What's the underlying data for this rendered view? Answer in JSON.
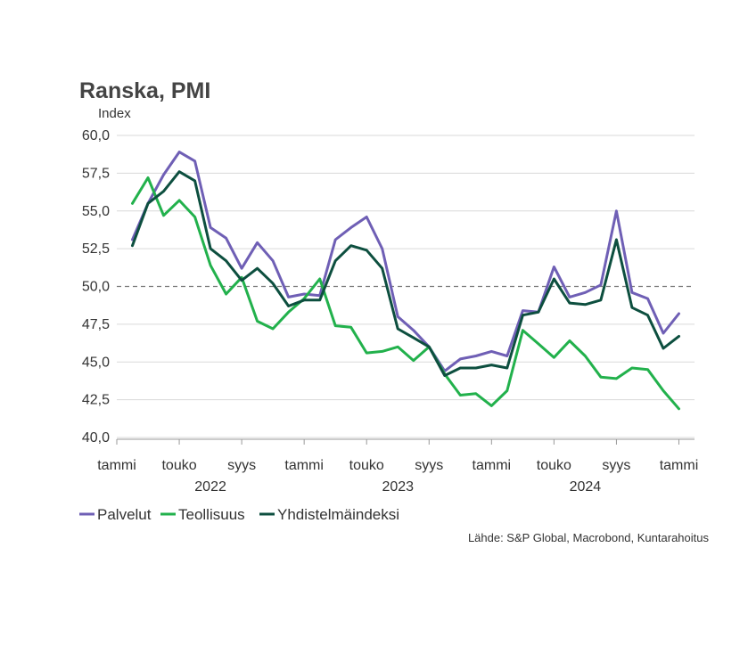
{
  "chart_data": {
    "type": "line",
    "title": "Ranska, PMI",
    "ylabel": "Index",
    "ylim": [
      40,
      60
    ],
    "yticks": [
      "60,0",
      "57,5",
      "55,0",
      "52,5",
      "50,0",
      "47,5",
      "45,0",
      "42,5",
      "40,0"
    ],
    "ytick_values": [
      60,
      57.5,
      55,
      52.5,
      50,
      47.5,
      45,
      42.5,
      40
    ],
    "reference_line": 50,
    "x_start": "2021-12",
    "x_end": "2025-01",
    "x_ticks": [
      {
        "label": "tammi",
        "month": "2021-12"
      },
      {
        "label": "touko",
        "month": "2022-04"
      },
      {
        "label": "syys",
        "month": "2022-08"
      },
      {
        "label": "tammi",
        "month": "2022-12"
      },
      {
        "label": "touko",
        "month": "2023-04"
      },
      {
        "label": "syys",
        "month": "2023-08"
      },
      {
        "label": "tammi",
        "month": "2023-12"
      },
      {
        "label": "touko",
        "month": "2024-04"
      },
      {
        "label": "syys",
        "month": "2024-08"
      },
      {
        "label": "tammi",
        "month": "2024-12"
      }
    ],
    "year_labels": [
      {
        "label": "2022",
        "month": "2022-06"
      },
      {
        "label": "2023",
        "month": "2023-06"
      },
      {
        "label": "2024",
        "month": "2024-06"
      }
    ],
    "x": [
      "2022-01",
      "2022-02",
      "2022-03",
      "2022-04",
      "2022-05",
      "2022-06",
      "2022-07",
      "2022-08",
      "2022-09",
      "2022-10",
      "2022-11",
      "2022-12",
      "2023-01",
      "2023-02",
      "2023-03",
      "2023-04",
      "2023-05",
      "2023-06",
      "2023-07",
      "2023-08",
      "2023-09",
      "2023-10",
      "2023-11",
      "2023-12",
      "2024-01",
      "2024-02",
      "2024-03",
      "2024-04",
      "2024-05",
      "2024-06",
      "2024-07",
      "2024-08",
      "2024-09",
      "2024-10",
      "2024-11",
      "2024-12"
    ],
    "series": [
      {
        "name": "Palvelut",
        "color": "#6f5fb5",
        "values": [
          53.1,
          55.5,
          57.4,
          58.9,
          58.3,
          53.9,
          53.2,
          51.2,
          52.9,
          51.7,
          49.3,
          49.5,
          49.4,
          53.1,
          53.9,
          54.6,
          52.5,
          48.0,
          47.1,
          46.0,
          44.4,
          45.2,
          45.4,
          45.7,
          45.4,
          48.4,
          48.3,
          51.3,
          49.3,
          49.6,
          50.1,
          55.0,
          49.6,
          49.2,
          46.9,
          48.2
        ]
      },
      {
        "name": "Teollisuus",
        "color": "#22b14c",
        "values": [
          55.5,
          57.2,
          54.7,
          55.7,
          54.6,
          51.4,
          49.5,
          50.6,
          47.7,
          47.2,
          48.3,
          49.2,
          50.5,
          47.4,
          47.3,
          45.6,
          45.7,
          46.0,
          45.1,
          46.0,
          44.2,
          42.8,
          42.9,
          42.1,
          43.1,
          47.1,
          46.2,
          45.3,
          46.4,
          45.4,
          44.0,
          43.9,
          44.6,
          44.5,
          43.1,
          41.9
        ]
      },
      {
        "name": "Yhdistelmäindeksi",
        "color": "#0d4f3f",
        "values": [
          52.7,
          55.5,
          56.3,
          57.6,
          57.0,
          52.5,
          51.7,
          50.4,
          51.2,
          50.2,
          48.7,
          49.1,
          49.1,
          51.7,
          52.7,
          52.4,
          51.2,
          47.2,
          46.6,
          46.0,
          44.1,
          44.6,
          44.6,
          44.8,
          44.6,
          48.1,
          48.3,
          50.5,
          48.9,
          48.8,
          49.1,
          53.1,
          48.6,
          48.1,
          45.9,
          46.7
        ]
      }
    ],
    "legend_position": "bottom-left",
    "grid": true,
    "source": "Lähde: S&P Global, Macrobond, Kuntarahoitus"
  }
}
